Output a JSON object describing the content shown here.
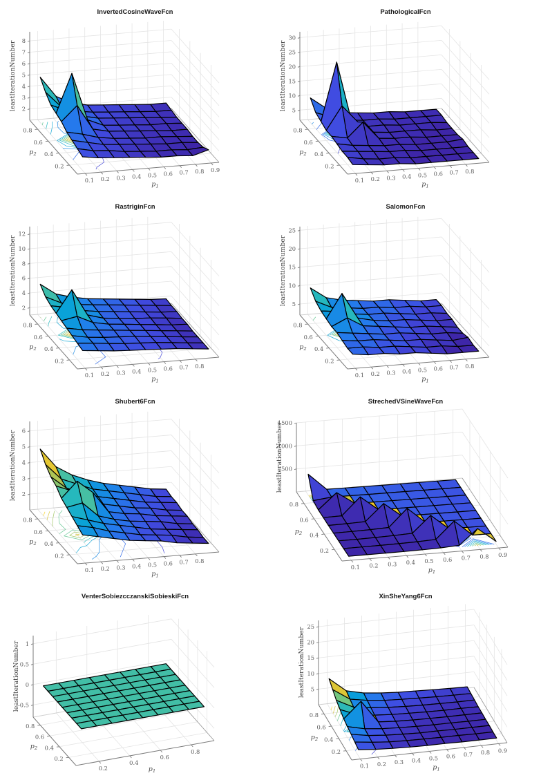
{
  "figure": {
    "rows": 4,
    "cols": 2,
    "background": "#ffffff"
  },
  "colors": {
    "colormap_low": "#3e26a8",
    "colormap_mid": "#26b8bd",
    "colormap_high": "#f9fb15",
    "flat_surface_teal": "#2ab8a8",
    "title_text": "#1a1a1a",
    "tick_label": "#5a5a5a",
    "axis_line": "#7a7a7a",
    "grid_line": "#e4e4e4",
    "surface_edge": "#000000"
  },
  "chart_data": [
    {
      "type": "surface3d",
      "title": "InvertedCosineWaveFcn",
      "xlabel": "p_1",
      "ylabel": "p_2",
      "zlabel": "leastIterationNumber",
      "xlim": [
        0.05,
        0.95
      ],
      "ylim": [
        0.05,
        0.95
      ],
      "zlim": [
        1,
        8.8
      ],
      "xticks": [
        0.1,
        0.2,
        0.3,
        0.4,
        0.5,
        0.6,
        0.7,
        0.8,
        0.9
      ],
      "yticks": [
        0.2,
        0.4,
        0.6,
        0.8
      ],
      "zticks": [
        2,
        3,
        4,
        5,
        6,
        7,
        8
      ],
      "x": [
        0.1,
        0.2,
        0.3,
        0.4,
        0.5,
        0.6,
        0.7,
        0.8,
        0.9
      ],
      "y": [
        0.1,
        0.2,
        0.3,
        0.4,
        0.5,
        0.6,
        0.7,
        0.8,
        0.9
      ],
      "z": [
        [
          2.2,
          2.0,
          1.9,
          1.8,
          1.7,
          1.6,
          1.6,
          1.5,
          1.9
        ],
        [
          2.4,
          2.1,
          2.0,
          1.8,
          1.7,
          1.6,
          1.6,
          1.5,
          1.6
        ],
        [
          2.6,
          2.3,
          2.0,
          1.9,
          1.8,
          1.7,
          1.6,
          1.6,
          1.5
        ],
        [
          2.8,
          2.5,
          2.1,
          1.9,
          1.8,
          1.7,
          1.7,
          1.6,
          1.5
        ],
        [
          3.2,
          4.5,
          2.3,
          2.0,
          1.9,
          1.8,
          1.7,
          1.6,
          1.6
        ],
        [
          3.4,
          6.8,
          2.6,
          2.0,
          1.9,
          1.8,
          1.7,
          1.7,
          1.6
        ],
        [
          3.6,
          3.0,
          2.4,
          2.1,
          2.0,
          1.9,
          1.8,
          1.7,
          1.6
        ],
        [
          4.2,
          2.8,
          2.3,
          2.1,
          2.0,
          1.9,
          1.8,
          1.7,
          1.7
        ],
        [
          5.0,
          3.2,
          2.5,
          2.2,
          2.1,
          2.0,
          1.9,
          1.8,
          1.8
        ]
      ]
    },
    {
      "type": "surface3d",
      "title": "PathologicalFcn",
      "xlabel": "p_1",
      "ylabel": "p_2",
      "zlabel": "leastIterationNumber",
      "xlim": [
        0.05,
        0.95
      ],
      "ylim": [
        0.05,
        0.95
      ],
      "zlim": [
        1.5,
        32
      ],
      "xticks": [
        0.1,
        0.2,
        0.3,
        0.4,
        0.5,
        0.6,
        0.7,
        0.8
      ],
      "yticks": [
        0.2,
        0.4,
        0.6,
        0.8
      ],
      "zticks": [
        5,
        10,
        15,
        20,
        25,
        30
      ],
      "x": [
        0.1,
        0.2,
        0.3,
        0.4,
        0.5,
        0.6,
        0.7,
        0.8,
        0.9
      ],
      "y": [
        0.1,
        0.2,
        0.3,
        0.4,
        0.5,
        0.6,
        0.7,
        0.8,
        0.9
      ],
      "z": [
        [
          3.5,
          3.0,
          2.5,
          2.5,
          2.0,
          2.0,
          2.0,
          2.0,
          2.0
        ],
        [
          4.0,
          3.0,
          2.5,
          2.5,
          2.0,
          2.0,
          2.0,
          2.0,
          2.0
        ],
        [
          4.0,
          3.5,
          3.0,
          2.5,
          2.5,
          2.0,
          2.0,
          2.0,
          2.0
        ],
        [
          4.5,
          3.5,
          3.0,
          2.5,
          2.5,
          2.0,
          2.0,
          2.0,
          2.5
        ],
        [
          5.0,
          4.0,
          9.0,
          3.0,
          2.5,
          2.5,
          2.0,
          2.0,
          2.0
        ],
        [
          5.0,
          13.0,
          7.0,
          3.0,
          2.5,
          2.5,
          2.5,
          2.0,
          2.0
        ],
        [
          6.0,
          26.0,
          4.0,
          3.0,
          3.0,
          2.5,
          2.5,
          2.5,
          2.0
        ],
        [
          7.0,
          5.0,
          3.5,
          3.0,
          3.0,
          2.5,
          2.5,
          2.5,
          2.5
        ],
        [
          10.0,
          6.0,
          4.0,
          3.5,
          3.0,
          3.0,
          2.5,
          2.5,
          2.5
        ]
      ]
    },
    {
      "type": "surface3d",
      "title": "RastriginFcn",
      "xlabel": "p_1",
      "ylabel": "p_2",
      "zlabel": "leastIterationNumber",
      "xlim": [
        0.05,
        0.95
      ],
      "ylim": [
        0.05,
        0.95
      ],
      "zlim": [
        1,
        13
      ],
      "xticks": [
        0.1,
        0.2,
        0.3,
        0.4,
        0.5,
        0.6,
        0.7,
        0.8
      ],
      "yticks": [
        0.2,
        0.4,
        0.6,
        0.8
      ],
      "zticks": [
        2,
        4,
        6,
        8,
        10,
        12
      ],
      "x": [
        0.1,
        0.2,
        0.3,
        0.4,
        0.5,
        0.6,
        0.7,
        0.8,
        0.9
      ],
      "y": [
        0.1,
        0.2,
        0.3,
        0.4,
        0.5,
        0.6,
        0.7,
        0.8,
        0.9
      ],
      "z": [
        [
          3.0,
          2.8,
          2.6,
          2.5,
          2.4,
          2.3,
          2.2,
          2.0,
          1.8
        ],
        [
          3.2,
          3.0,
          2.8,
          2.6,
          2.5,
          2.4,
          2.2,
          2.0,
          1.8
        ],
        [
          3.4,
          3.0,
          2.8,
          2.7,
          2.6,
          2.4,
          2.2,
          2.0,
          1.8
        ],
        [
          3.6,
          3.2,
          3.0,
          2.8,
          2.6,
          2.4,
          2.2,
          2.0,
          1.8
        ],
        [
          3.8,
          4.2,
          3.2,
          2.8,
          2.6,
          2.4,
          2.2,
          2.0,
          1.9
        ],
        [
          4.0,
          7.0,
          3.4,
          2.8,
          2.6,
          2.4,
          2.3,
          2.1,
          1.9
        ],
        [
          4.2,
          3.8,
          3.2,
          2.9,
          2.7,
          2.5,
          2.3,
          2.1,
          2.0
        ],
        [
          4.6,
          3.6,
          3.2,
          3.0,
          2.8,
          2.6,
          2.4,
          2.2,
          2.0
        ],
        [
          5.5,
          4.0,
          3.4,
          3.0,
          2.8,
          2.6,
          2.4,
          2.2,
          2.1
        ]
      ]
    },
    {
      "type": "surface3d",
      "title": "SalomonFcn",
      "xlabel": "p_1",
      "ylabel": "p_2",
      "zlabel": "leastIterationNumber",
      "xlim": [
        0.05,
        0.95
      ],
      "ylim": [
        0.05,
        0.95
      ],
      "zlim": [
        2,
        26
      ],
      "xticks": [
        0.1,
        0.2,
        0.3,
        0.4,
        0.5,
        0.6,
        0.7,
        0.8
      ],
      "yticks": [
        0.2,
        0.4,
        0.6,
        0.8
      ],
      "zticks": [
        5,
        10,
        15,
        20,
        25
      ],
      "x": [
        0.1,
        0.2,
        0.3,
        0.4,
        0.5,
        0.6,
        0.7,
        0.8,
        0.9
      ],
      "y": [
        0.1,
        0.2,
        0.3,
        0.4,
        0.5,
        0.6,
        0.7,
        0.8,
        0.9
      ],
      "z": [
        [
          5.0,
          4.5,
          4.5,
          4.0,
          4.0,
          3.5,
          3.0,
          3.0,
          3.0
        ],
        [
          5.0,
          5.0,
          4.5,
          4.5,
          4.0,
          3.5,
          3.5,
          3.0,
          3.0
        ],
        [
          5.5,
          5.0,
          5.0,
          4.5,
          4.0,
          4.0,
          3.5,
          3.0,
          3.5
        ],
        [
          6.0,
          5.5,
          5.0,
          4.5,
          4.5,
          4.0,
          3.5,
          3.5,
          3.0
        ],
        [
          6.0,
          8.0,
          5.5,
          5.0,
          4.5,
          4.0,
          4.0,
          3.5,
          3.0
        ],
        [
          6.5,
          13.0,
          6.0,
          5.0,
          4.5,
          4.5,
          4.0,
          3.5,
          3.5
        ],
        [
          7.0,
          6.5,
          5.5,
          5.0,
          5.0,
          4.5,
          4.0,
          4.0,
          3.5
        ],
        [
          8.0,
          6.0,
          5.5,
          5.0,
          5.0,
          4.5,
          4.5,
          4.0,
          4.0
        ],
        [
          10.0,
          7.0,
          6.0,
          5.5,
          5.0,
          5.0,
          4.5,
          4.0,
          4.0
        ]
      ]
    },
    {
      "type": "surface3d",
      "title": "Shubert6Fcn",
      "xlabel": "p_1",
      "ylabel": "p_2",
      "zlabel": "leastIterationNumber",
      "xlim": [
        0.05,
        0.95
      ],
      "ylim": [
        0.05,
        0.95
      ],
      "zlim": [
        1,
        6.6
      ],
      "xticks": [
        0.1,
        0.2,
        0.3,
        0.4,
        0.5,
        0.6,
        0.7,
        0.8
      ],
      "yticks": [
        0.2,
        0.4,
        0.6,
        0.8
      ],
      "zticks": [
        2,
        3,
        4,
        5,
        6
      ],
      "x": [
        0.1,
        0.2,
        0.3,
        0.4,
        0.5,
        0.6,
        0.7,
        0.8,
        0.9
      ],
      "y": [
        0.1,
        0.2,
        0.3,
        0.4,
        0.5,
        0.6,
        0.7,
        0.8,
        0.9
      ],
      "z": [
        [
          2.6,
          2.4,
          2.2,
          2.0,
          1.9,
          1.8,
          1.6,
          1.5,
          1.4
        ],
        [
          2.8,
          2.6,
          2.3,
          2.1,
          1.9,
          1.8,
          1.7,
          1.5,
          1.4
        ],
        [
          3.0,
          2.7,
          2.4,
          2.2,
          2.0,
          1.8,
          1.7,
          1.6,
          1.5
        ],
        [
          3.2,
          3.4,
          2.5,
          2.2,
          2.0,
          1.9,
          1.8,
          1.6,
          1.5
        ],
        [
          3.4,
          4.4,
          3.6,
          2.3,
          2.1,
          2.0,
          1.8,
          1.7,
          1.6
        ],
        [
          3.8,
          3.4,
          2.8,
          2.4,
          2.2,
          2.0,
          1.9,
          1.7,
          1.6
        ],
        [
          4.0,
          3.2,
          2.8,
          2.5,
          2.3,
          2.1,
          1.9,
          1.8,
          1.7
        ],
        [
          4.4,
          3.4,
          3.0,
          2.6,
          2.4,
          2.2,
          2.0,
          1.8,
          1.7
        ],
        [
          5.0,
          3.8,
          3.2,
          2.8,
          2.5,
          2.3,
          2.1,
          1.9,
          1.8
        ]
      ]
    },
    {
      "type": "surface3d",
      "title": "StrechedVSineWaveFcn",
      "xlabel": "p_1",
      "ylabel": "p_2",
      "zlabel": "leastIterationNumber",
      "xlim": [
        0.05,
        0.95
      ],
      "ylim": [
        0.05,
        0.95
      ],
      "zlim": [
        0,
        1500
      ],
      "xticks": [
        0.1,
        0.2,
        0.3,
        0.4,
        0.5,
        0.6,
        0.7,
        0.8,
        0.9
      ],
      "yticks": [
        0.2,
        0.4,
        0.6,
        0.8
      ],
      "zticks": [
        500,
        1000,
        1500
      ],
      "x": [
        0.1,
        0.2,
        0.3,
        0.4,
        0.5,
        0.6,
        0.7,
        0.8,
        0.9
      ],
      "y": [
        0.1,
        0.2,
        0.3,
        0.4,
        0.5,
        0.6,
        0.7,
        0.8,
        0.9
      ],
      "z": [
        [
          2,
          3,
          4,
          6,
          10,
          18,
          40,
          370,
          60
        ],
        [
          3,
          4,
          6,
          10,
          18,
          35,
          400,
          63,
          61
        ],
        [
          4,
          5,
          10,
          18,
          35,
          390,
          66,
          64,
          61
        ],
        [
          5,
          7,
          14,
          28,
          410,
          70,
          67,
          64,
          62
        ],
        [
          6,
          10,
          22,
          380,
          74,
          71,
          68,
          65,
          63
        ],
        [
          8,
          15,
          390,
          78,
          75,
          72,
          69,
          66,
          63
        ],
        [
          10,
          350,
          82,
          79,
          76,
          73,
          70,
          67,
          64
        ],
        [
          45,
          88,
          84,
          80,
          77,
          74,
          71,
          68,
          65
        ],
        [
          450,
          92,
          86,
          82,
          78,
          75,
          72,
          69,
          66
        ]
      ]
    },
    {
      "type": "surface3d",
      "title": "VenterSobiezcczanskiSobieskiFcn",
      "xlabel": "p_1",
      "ylabel": "p_2",
      "zlabel": "leastIterationNumber",
      "xlim": [
        0.05,
        0.95
      ],
      "ylim": [
        0.05,
        0.95
      ],
      "zlim": [
        -0.8,
        1.2
      ],
      "xticks": [
        0.2,
        0.4,
        0.6,
        0.8
      ],
      "yticks": [
        0.2,
        0.4,
        0.6,
        0.8
      ],
      "zticks": [
        -0.5,
        0,
        0.5,
        1
      ],
      "x": [
        0.1,
        0.2,
        0.3,
        0.4,
        0.5,
        0.6,
        0.7,
        0.8,
        0.9
      ],
      "y": [
        0.1,
        0.2,
        0.3,
        0.4,
        0.5,
        0.6,
        0.7,
        0.8,
        0.9
      ],
      "z": [
        [
          0,
          0,
          0,
          0,
          0,
          0,
          0,
          0,
          0
        ],
        [
          0,
          0,
          0,
          0,
          0,
          0,
          0,
          0,
          0
        ],
        [
          0,
          0,
          0,
          0,
          0,
          0,
          0,
          0,
          0
        ],
        [
          0,
          0,
          0,
          0,
          0,
          0,
          0,
          0,
          0
        ],
        [
          0,
          0,
          0,
          0,
          0,
          0,
          0,
          0,
          0
        ],
        [
          0,
          0,
          0,
          0,
          0,
          0,
          0,
          0,
          0
        ],
        [
          0,
          0,
          0,
          0,
          0,
          0,
          0,
          0,
          0
        ],
        [
          0,
          0,
          0,
          0,
          0,
          0,
          0,
          0,
          0
        ],
        [
          0,
          0,
          0,
          0,
          0,
          0,
          0,
          0,
          0
        ]
      ]
    },
    {
      "type": "surface3d",
      "title": "XinSheYang6Fcn",
      "xlabel": "p_1",
      "ylabel": "p_2",
      "zlabel": "leastIterationNumber",
      "xlim": [
        0.05,
        0.95
      ],
      "ylim": [
        0.05,
        0.95
      ],
      "zlim": [
        0,
        27
      ],
      "xticks": [
        0.1,
        0.2,
        0.3,
        0.4,
        0.5,
        0.6,
        0.7,
        0.8,
        0.9
      ],
      "yticks": [
        0.2,
        0.4,
        0.6,
        0.8
      ],
      "zticks": [
        5,
        10,
        15,
        20,
        25
      ],
      "x": [
        0.1,
        0.2,
        0.3,
        0.4,
        0.5,
        0.6,
        0.7,
        0.8,
        0.9
      ],
      "y": [
        0.1,
        0.2,
        0.3,
        0.4,
        0.5,
        0.6,
        0.7,
        0.8,
        0.9
      ],
      "z": [
        [
          2.0,
          1.5,
          1.2,
          1.0,
          0.9,
          0.9,
          0.8,
          0.8,
          0.8
        ],
        [
          2.5,
          1.8,
          1.3,
          1.1,
          1.0,
          0.9,
          0.9,
          0.8,
          0.8
        ],
        [
          3.0,
          2.0,
          1.5,
          1.2,
          1.0,
          1.0,
          0.9,
          0.9,
          0.9
        ],
        [
          3.5,
          2.2,
          1.6,
          1.3,
          1.1,
          1.0,
          1.0,
          0.9,
          0.9
        ],
        [
          4.0,
          9.0,
          1.8,
          1.4,
          1.2,
          1.1,
          1.0,
          1.0,
          1.0
        ],
        [
          5.0,
          2.8,
          2.0,
          1.6,
          1.4,
          1.2,
          1.1,
          1.1,
          1.0
        ],
        [
          6.0,
          3.2,
          2.4,
          1.9,
          1.6,
          1.4,
          1.3,
          1.2,
          1.2
        ],
        [
          7.5,
          3.8,
          2.8,
          2.2,
          1.9,
          1.7,
          1.5,
          1.4,
          1.3
        ],
        [
          9.0,
          4.5,
          3.2,
          2.6,
          2.2,
          2.0,
          1.8,
          1.6,
          1.5
        ]
      ]
    }
  ]
}
